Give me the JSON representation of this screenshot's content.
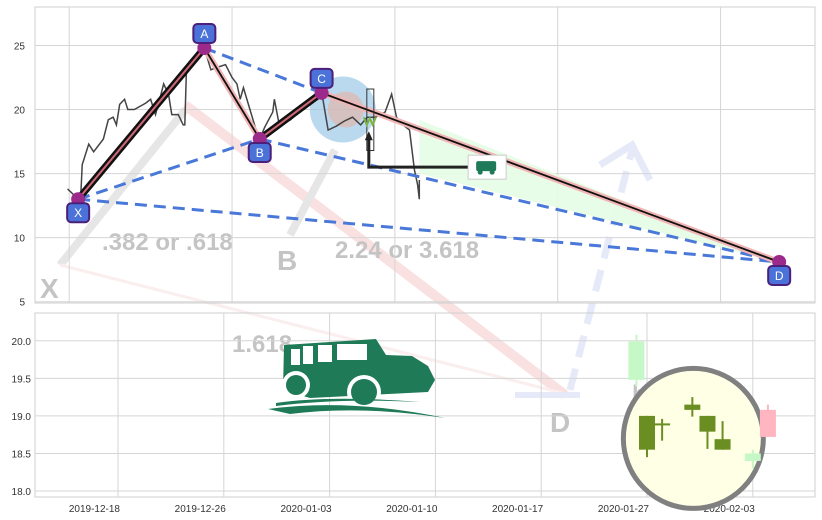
{
  "chart_data": [
    {
      "type": "line",
      "title": "",
      "xlabel": "",
      "ylabel": "",
      "xlim": [
        -2.1,
        45.8
      ],
      "ylim": [
        4.9,
        28.0
      ],
      "x_gridlines": [
        0,
        10,
        20,
        30,
        40
      ],
      "yticks": [
        5,
        10,
        15,
        20,
        25
      ],
      "grid": true,
      "series": [
        {
          "color": "#444444",
          "points": [
            [
              -0.1,
              13.8
            ],
            [
              0.4,
              13.2
            ],
            [
              0.7,
              13.0
            ],
            [
              0.8,
              15.7
            ],
            [
              1.2,
              17.3
            ],
            [
              1.5,
              16.7
            ],
            [
              2.1,
              17.7
            ],
            [
              2.4,
              19.2
            ],
            [
              2.7,
              19.4
            ],
            [
              2.9,
              18.8
            ],
            [
              3.1,
              20.4
            ],
            [
              3.4,
              20.8
            ],
            [
              3.6,
              20.0
            ],
            [
              4.0,
              20.0
            ],
            [
              4.7,
              20.5
            ],
            [
              5.0,
              20.8
            ],
            [
              5.3,
              19.6
            ],
            [
              5.6,
              21.0
            ],
            [
              5.8,
              22.0
            ],
            [
              6.1,
              21.2
            ],
            [
              6.3,
              19.6
            ],
            [
              6.7,
              19.6
            ],
            [
              7.0,
              18.8
            ],
            [
              7.1,
              18.8
            ],
            [
              7.2,
              23.1
            ],
            [
              7.7,
              23.7
            ],
            [
              8.3,
              24.8
            ],
            [
              8.7,
              23.1
            ],
            [
              9.1,
              23.3
            ],
            [
              9.6,
              23.5
            ],
            [
              10.0,
              22.5
            ],
            [
              10.3,
              22.0
            ],
            [
              10.5,
              20.8
            ],
            [
              10.7,
              21.7
            ],
            [
              11.1,
              20.0
            ],
            [
              11.5,
              18.3
            ],
            [
              11.7,
              17.7
            ],
            [
              12.0,
              18.6
            ],
            [
              12.5,
              19.8
            ],
            [
              12.6,
              20.8
            ],
            [
              12.9,
              18.8
            ],
            [
              13.6,
              19.2
            ],
            [
              14.2,
              20.0
            ],
            [
              14.8,
              20.4
            ],
            [
              15.5,
              21.4
            ],
            [
              15.9,
              18.4
            ],
            [
              16.4,
              18.7
            ],
            [
              16.9,
              19.1
            ],
            [
              17.4,
              19.4
            ],
            [
              17.9,
              18.8
            ],
            [
              18.3,
              19.4
            ],
            [
              18.8,
              19.4
            ],
            [
              19.4,
              19.8
            ],
            [
              19.8,
              21.2
            ],
            [
              20.1,
              19.4
            ],
            [
              20.5,
              18.8
            ],
            [
              20.9,
              18.4
            ],
            [
              21.2,
              15.3
            ],
            [
              21.4,
              14.1
            ],
            [
              21.5,
              13.0
            ],
            [
              21.5,
              14.5
            ]
          ]
        }
      ],
      "pattern": {
        "points": [
          {
            "label": "X",
            "x": 0.55,
            "y": 13.0
          },
          {
            "label": "A",
            "x": 8.3,
            "y": 24.8
          },
          {
            "label": "B",
            "x": 11.7,
            "y": 17.7
          },
          {
            "label": "C",
            "x": 15.5,
            "y": 21.3
          },
          {
            "label": "D",
            "x": 43.6,
            "y": 8.1
          }
        ],
        "label_fill": "#4a72d9",
        "label_border": "#4b1f7a",
        "marker_color": "#9b2a8a",
        "dashed_color": "#4a78d9",
        "zone_fill": "#e6fde6",
        "entry_level": 15.5,
        "entry_x": [
          18.4,
          24.5
        ],
        "highlight_circle": {
          "x": 16.8,
          "y": 20.0,
          "color": "#9cc9e8"
        }
      }
    },
    {
      "type": "candlestick",
      "title": "",
      "xlabel": "",
      "ylabel": "",
      "ylim": [
        17.92,
        20.37
      ],
      "yticks": [
        "18.0",
        "18.5",
        "19.0",
        "19.5",
        "20.0"
      ],
      "xticks": [
        "2019-12-18",
        "2019-12-26",
        "2020-01-03",
        "2020-01-10",
        "2020-01-17",
        "2020-01-27",
        "2020-02-03"
      ],
      "grid": true,
      "candles": [
        {
          "date": "2020-01-26",
          "open": 19.48,
          "high": 20.08,
          "low": 19.39,
          "close": 19.99,
          "color": "#c6f7c6"
        },
        {
          "date": "2020-01-27",
          "open": 19.0,
          "high": 19.0,
          "low": 18.45,
          "close": 18.55,
          "color": "#6b8e23"
        },
        {
          "date": "2020-01-28",
          "open": 18.9,
          "high": 18.96,
          "low": 18.67,
          "close": 18.9,
          "color": "#6b8e23"
        },
        {
          "date": "2020-01-30",
          "open": 19.15,
          "high": 19.25,
          "low": 18.99,
          "close": 19.08,
          "color": "#6b8e23"
        },
        {
          "date": "2020-01-31",
          "open": 19.0,
          "high": 19.0,
          "low": 18.56,
          "close": 18.79,
          "color": "#6b8e23"
        },
        {
          "date": "2020-02-01",
          "open": 18.69,
          "high": 18.93,
          "low": 18.55,
          "close": 18.55,
          "color": "#6b8e23"
        },
        {
          "date": "2020-02-03",
          "open": 18.5,
          "high": 18.55,
          "low": 18.3,
          "close": 18.4,
          "color": "#c6f7c6"
        },
        {
          "date": "2020-02-04",
          "open": 18.72,
          "high": 19.15,
          "low": 18.72,
          "close": 19.08,
          "color": "#ffb6c1"
        }
      ],
      "highlight_circle": {
        "date": "2020-01-30",
        "y": 18.7,
        "fill": "#ffffe6",
        "stroke": "#808080"
      }
    }
  ],
  "watermark": {
    "labels": [
      "X",
      ".382 or .618",
      "B",
      "2.24 or 3.618",
      "1.618",
      "D",
      "buy"
    ]
  },
  "logo": {
    "name": "jeep-logo",
    "color": "#1e7a57"
  }
}
